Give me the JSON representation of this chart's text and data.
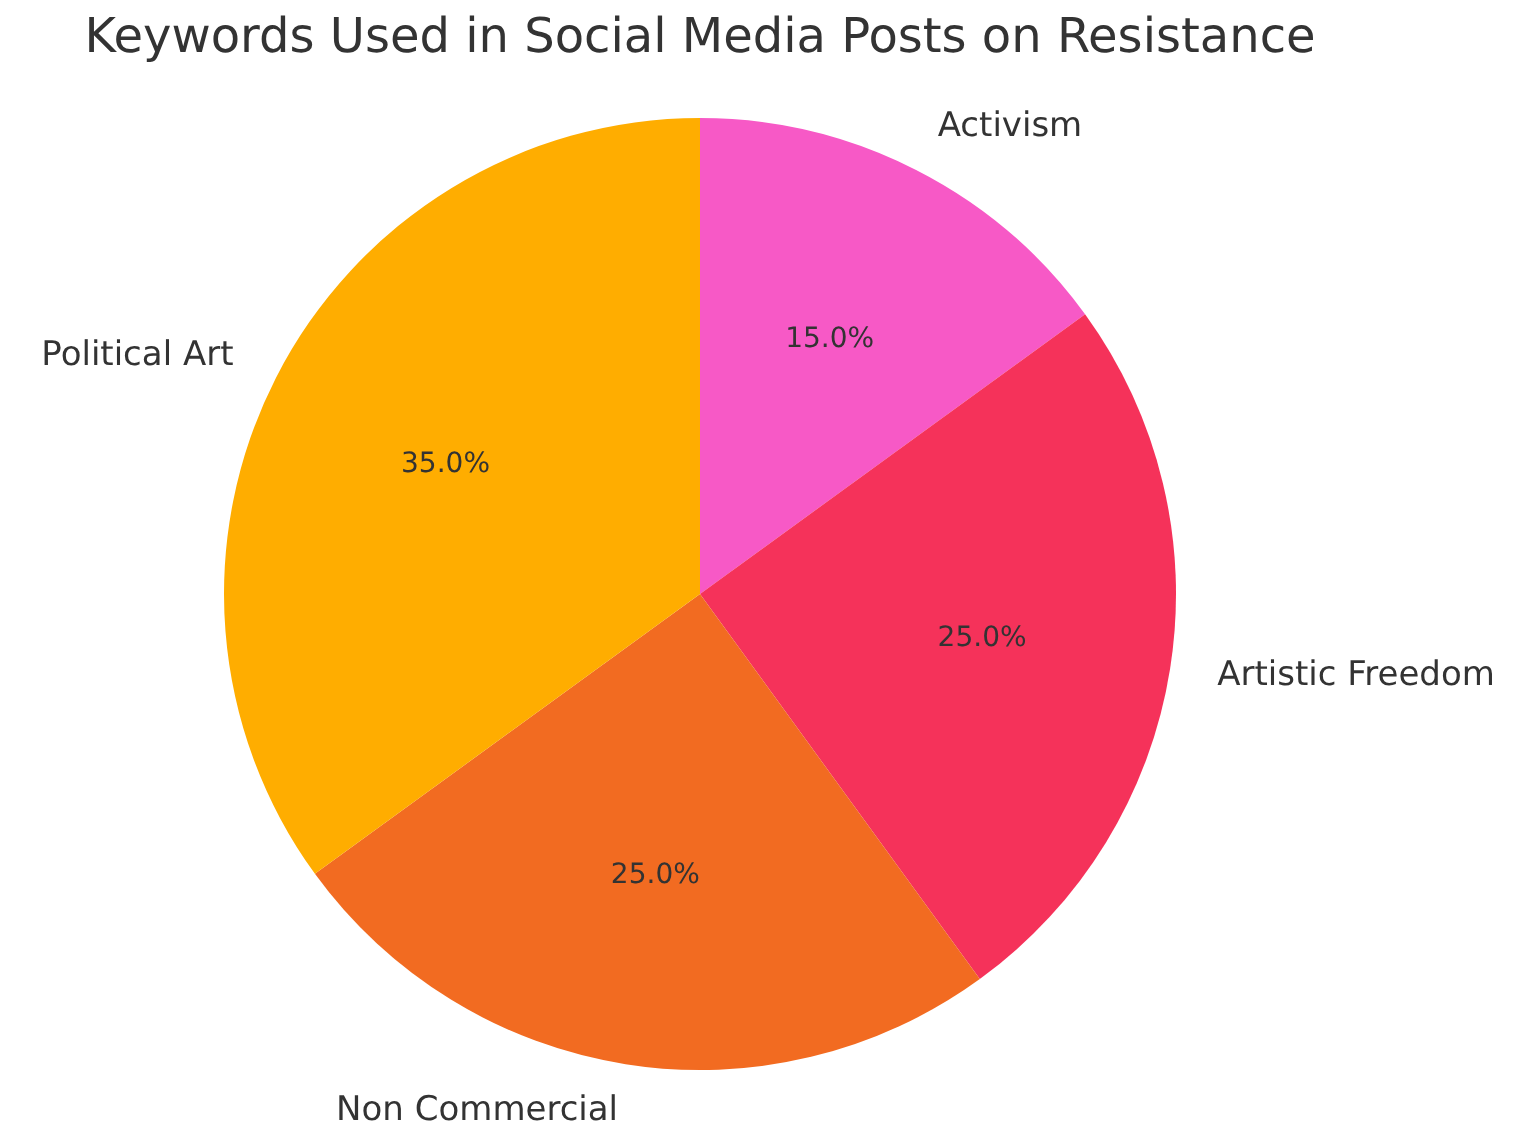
{
  "chart_data": {
    "type": "pie",
    "title": "Keywords Used in Social Media Posts on Resistance",
    "categories": [
      "Activism",
      "Artistic Freedom",
      "Non Commercial",
      "Political Art"
    ],
    "values": [
      15,
      25,
      25,
      35
    ],
    "value_labels": [
      "15.0%",
      "25.0%",
      "25.0%",
      "35.0%"
    ],
    "colors": [
      "#f759c6",
      "#f5325a",
      "#f26b21",
      "#ffad00"
    ],
    "legend": false
  }
}
